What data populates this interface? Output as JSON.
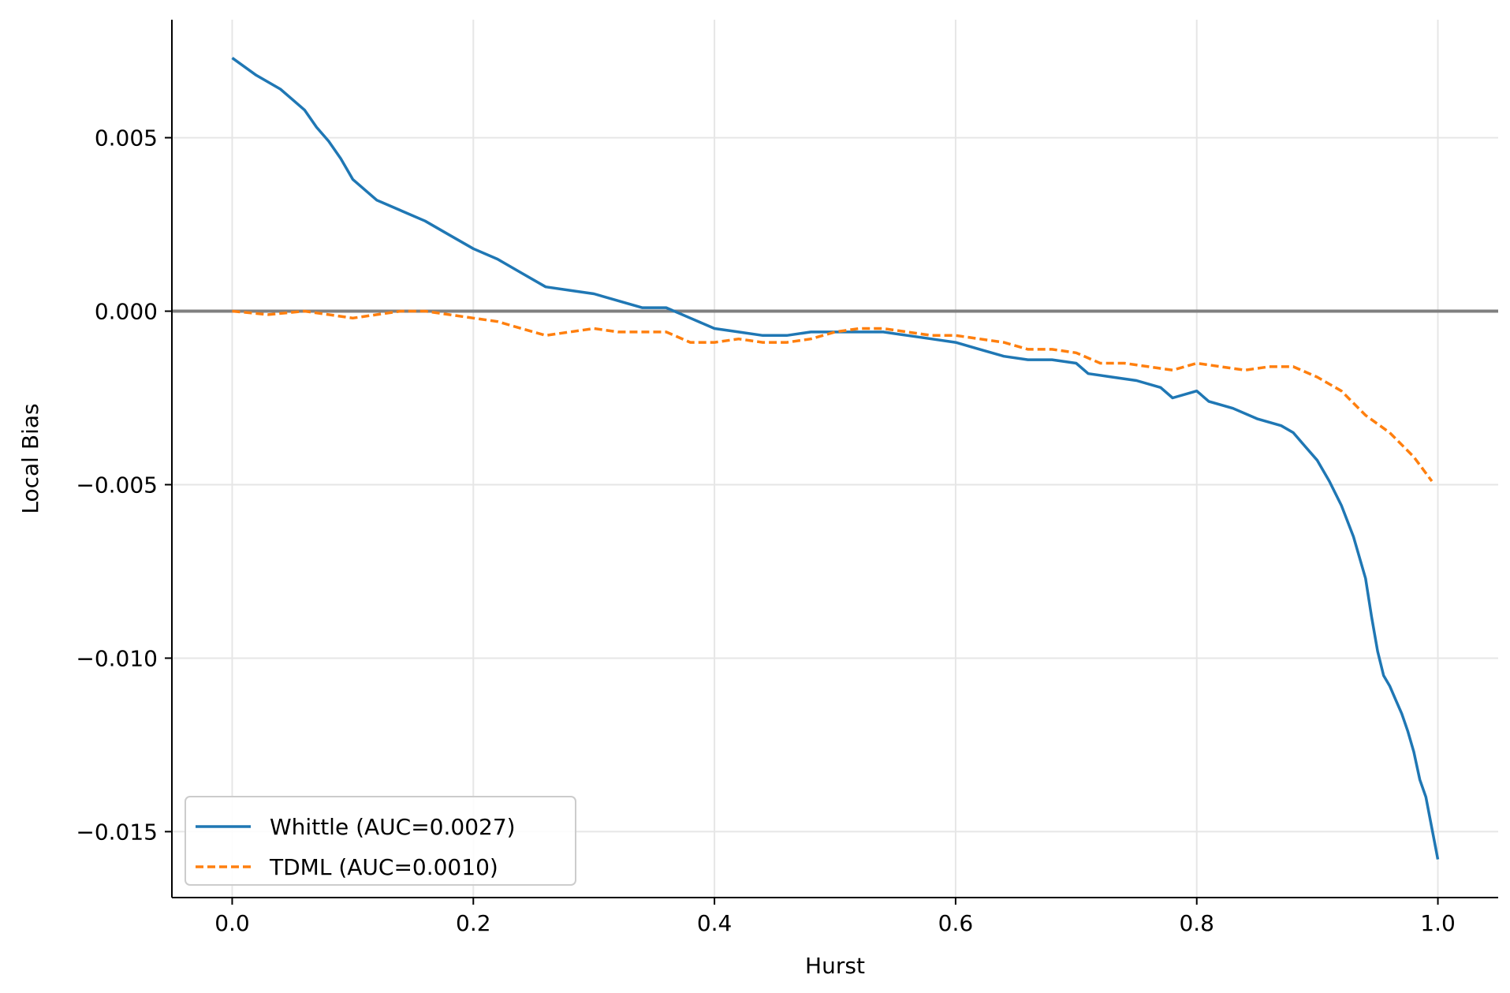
{
  "chart_data": {
    "type": "line",
    "xlabel": "Hurst",
    "ylabel": "Local Bias",
    "xlim": [
      -0.05,
      1.05
    ],
    "ylim": [
      -0.0169,
      0.0084
    ],
    "x_ticks": [
      0.0,
      0.2,
      0.4,
      0.6,
      0.8,
      1.0
    ],
    "x_tick_labels": [
      "0.0",
      "0.2",
      "0.4",
      "0.6",
      "0.8",
      "1.0"
    ],
    "y_ticks": [
      0.005,
      0.0,
      -0.005,
      -0.01,
      -0.015
    ],
    "y_tick_labels": [
      "0.005",
      "0.000",
      "−0.005",
      "−0.010",
      "−0.015"
    ],
    "grid": true,
    "reference_line": {
      "y": 0.0,
      "color": "#808080"
    },
    "legend_position": "lower-left",
    "series": [
      {
        "name": "Whittle (AUC=0.0027)",
        "color": "#1f77b4",
        "style": "solid",
        "points": [
          [
            0.0,
            0.0073
          ],
          [
            0.02,
            0.0068
          ],
          [
            0.04,
            0.0064
          ],
          [
            0.05,
            0.0061
          ],
          [
            0.06,
            0.0058
          ],
          [
            0.07,
            0.0053
          ],
          [
            0.08,
            0.0049
          ],
          [
            0.09,
            0.0044
          ],
          [
            0.1,
            0.0038
          ],
          [
            0.12,
            0.0032
          ],
          [
            0.14,
            0.0029
          ],
          [
            0.16,
            0.0026
          ],
          [
            0.18,
            0.0022
          ],
          [
            0.2,
            0.0018
          ],
          [
            0.22,
            0.0015
          ],
          [
            0.24,
            0.0011
          ],
          [
            0.26,
            0.0007
          ],
          [
            0.28,
            0.0006
          ],
          [
            0.3,
            0.0005
          ],
          [
            0.32,
            0.0003
          ],
          [
            0.34,
            0.0001
          ],
          [
            0.36,
            0.0001
          ],
          [
            0.38,
            -0.0002
          ],
          [
            0.4,
            -0.0005
          ],
          [
            0.42,
            -0.0006
          ],
          [
            0.44,
            -0.0007
          ],
          [
            0.46,
            -0.0007
          ],
          [
            0.48,
            -0.0006
          ],
          [
            0.5,
            -0.0006
          ],
          [
            0.52,
            -0.0006
          ],
          [
            0.54,
            -0.0006
          ],
          [
            0.56,
            -0.0007
          ],
          [
            0.58,
            -0.0008
          ],
          [
            0.6,
            -0.0009
          ],
          [
            0.62,
            -0.0011
          ],
          [
            0.64,
            -0.0013
          ],
          [
            0.66,
            -0.0014
          ],
          [
            0.68,
            -0.0014
          ],
          [
            0.7,
            -0.0015
          ],
          [
            0.71,
            -0.0018
          ],
          [
            0.73,
            -0.0019
          ],
          [
            0.75,
            -0.002
          ],
          [
            0.77,
            -0.0022
          ],
          [
            0.78,
            -0.0025
          ],
          [
            0.8,
            -0.0023
          ],
          [
            0.81,
            -0.0026
          ],
          [
            0.83,
            -0.0028
          ],
          [
            0.85,
            -0.0031
          ],
          [
            0.87,
            -0.0033
          ],
          [
            0.88,
            -0.0035
          ],
          [
            0.89,
            -0.0039
          ],
          [
            0.9,
            -0.0043
          ],
          [
            0.91,
            -0.0049
          ],
          [
            0.92,
            -0.0056
          ],
          [
            0.93,
            -0.0065
          ],
          [
            0.94,
            -0.0077
          ],
          [
            0.945,
            -0.0088
          ],
          [
            0.95,
            -0.0098
          ],
          [
            0.955,
            -0.0105
          ],
          [
            0.96,
            -0.0108
          ],
          [
            0.965,
            -0.0112
          ],
          [
            0.97,
            -0.0116
          ],
          [
            0.975,
            -0.0121
          ],
          [
            0.98,
            -0.0127
          ],
          [
            0.985,
            -0.0135
          ],
          [
            0.99,
            -0.014
          ],
          [
            0.995,
            -0.0149
          ],
          [
            1.0,
            -0.0158
          ]
        ]
      },
      {
        "name": "TDML (AUC=0.0010)",
        "color": "#ff7f0e",
        "style": "dashed",
        "points": [
          [
            0.0,
            0.0
          ],
          [
            0.03,
            -0.0001
          ],
          [
            0.06,
            0.0
          ],
          [
            0.08,
            -0.0001
          ],
          [
            0.1,
            -0.0002
          ],
          [
            0.12,
            -0.0001
          ],
          [
            0.14,
            0.0
          ],
          [
            0.16,
            0.0
          ],
          [
            0.18,
            -0.0001
          ],
          [
            0.2,
            -0.0002
          ],
          [
            0.22,
            -0.0003
          ],
          [
            0.24,
            -0.0005
          ],
          [
            0.26,
            -0.0007
          ],
          [
            0.28,
            -0.0006
          ],
          [
            0.3,
            -0.0005
          ],
          [
            0.32,
            -0.0006
          ],
          [
            0.34,
            -0.0006
          ],
          [
            0.36,
            -0.0006
          ],
          [
            0.38,
            -0.0009
          ],
          [
            0.4,
            -0.0009
          ],
          [
            0.42,
            -0.0008
          ],
          [
            0.44,
            -0.0009
          ],
          [
            0.46,
            -0.0009
          ],
          [
            0.48,
            -0.0008
          ],
          [
            0.5,
            -0.0006
          ],
          [
            0.52,
            -0.0005
          ],
          [
            0.54,
            -0.0005
          ],
          [
            0.56,
            -0.0006
          ],
          [
            0.58,
            -0.0007
          ],
          [
            0.6,
            -0.0007
          ],
          [
            0.62,
            -0.0008
          ],
          [
            0.64,
            -0.0009
          ],
          [
            0.66,
            -0.0011
          ],
          [
            0.68,
            -0.0011
          ],
          [
            0.7,
            -0.0012
          ],
          [
            0.72,
            -0.0015
          ],
          [
            0.74,
            -0.0015
          ],
          [
            0.76,
            -0.0016
          ],
          [
            0.78,
            -0.0017
          ],
          [
            0.8,
            -0.0015
          ],
          [
            0.82,
            -0.0016
          ],
          [
            0.84,
            -0.0017
          ],
          [
            0.86,
            -0.0016
          ],
          [
            0.88,
            -0.0016
          ],
          [
            0.9,
            -0.0019
          ],
          [
            0.92,
            -0.0023
          ],
          [
            0.94,
            -0.003
          ],
          [
            0.96,
            -0.0035
          ],
          [
            0.98,
            -0.0042
          ],
          [
            0.995,
            -0.0049
          ]
        ]
      }
    ]
  }
}
